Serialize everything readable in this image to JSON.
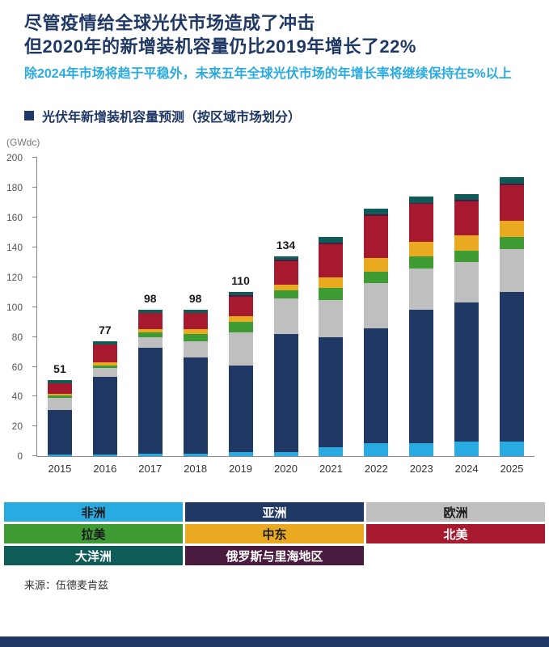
{
  "header": {
    "title_line1": "尽管疫情给全球光伏市场造成了冲击",
    "title_line2": "但2020年的新增装机容量仍比2019年增长了22%",
    "subtitle": "除2024年市场将趋于平稳外，未来五年全球光伏市场的年增长率将继续保持在5%以上"
  },
  "section": {
    "title": "光伏年新增装机容量预测（按区域市场划分）"
  },
  "chart_data": {
    "type": "bar",
    "stacked": true,
    "title": "光伏年新增装机容量预测（按区域市场划分）",
    "unit_label": "(GWdc)",
    "xlabel": "",
    "ylabel": "GWdc",
    "ylim": [
      0,
      200
    ],
    "ytick_step": 20,
    "grid": false,
    "legend_position": "bottom",
    "categories": [
      "2015",
      "2016",
      "2017",
      "2018",
      "2019",
      "2020",
      "2021",
      "2022",
      "2023",
      "2024",
      "2025"
    ],
    "totals_labels": [
      51,
      77,
      98,
      98,
      110,
      134,
      null,
      null,
      null,
      null,
      null
    ],
    "series": [
      {
        "name": "非洲",
        "color": "#29ABE2",
        "values": [
          1,
          1,
          2,
          2,
          3,
          3,
          6,
          9,
          9,
          10,
          10
        ]
      },
      {
        "name": "亚洲",
        "color": "#1F3864",
        "values": [
          30,
          52,
          71,
          64,
          58,
          79,
          74,
          77,
          89,
          93,
          100
        ]
      },
      {
        "name": "欧洲",
        "color": "#BFBFBF",
        "values": [
          8,
          6,
          7,
          11,
          22,
          24,
          25,
          30,
          28,
          27,
          29
        ]
      },
      {
        "name": "拉美",
        "color": "#3F9C35",
        "values": [
          2,
          2,
          3,
          5,
          7,
          5,
          8,
          8,
          8,
          8,
          8
        ]
      },
      {
        "name": "中东",
        "color": "#E9A921",
        "values": [
          1,
          2,
          2,
          3,
          4,
          4,
          7,
          9,
          10,
          10,
          11
        ]
      },
      {
        "name": "北美",
        "color": "#A6192E",
        "values": [
          7,
          12,
          11,
          11,
          13,
          16,
          22,
          28,
          25,
          23,
          24
        ]
      },
      {
        "name": "俄罗斯与里海地区",
        "color": "#4A1A3F",
        "values": [
          0,
          0,
          0,
          0,
          1,
          1,
          1,
          1,
          1,
          1,
          1
        ]
      },
      {
        "name": "大洋洲",
        "color": "#0F5B57",
        "values": [
          2,
          2,
          2,
          2,
          2,
          2,
          4,
          4,
          4,
          4,
          4
        ]
      }
    ]
  },
  "legend": {
    "items": [
      {
        "name": "非洲",
        "color": "#29ABE2",
        "text_color": "#1a1a1a"
      },
      {
        "name": "亚洲",
        "color": "#1F3864",
        "text_color": "#ffffff"
      },
      {
        "name": "欧洲",
        "color": "#BFBFBF",
        "text_color": "#1a1a1a"
      },
      {
        "name": "拉美",
        "color": "#3F9C35",
        "text_color": "#1a1a1a"
      },
      {
        "name": "中东",
        "color": "#E9A921",
        "text_color": "#1a1a1a"
      },
      {
        "name": "北美",
        "color": "#A6192E",
        "text_color": "#ffffff"
      },
      {
        "name": "大洋洲",
        "color": "#0F5B57",
        "text_color": "#ffffff"
      },
      {
        "name": "俄罗斯与里海地区",
        "color": "#4A1A3F",
        "text_color": "#ffffff"
      }
    ]
  },
  "source": "来源：伍德麦肯兹",
  "colors": {
    "brand_navy": "#1F3864",
    "accent_cyan": "#29ABE2"
  }
}
